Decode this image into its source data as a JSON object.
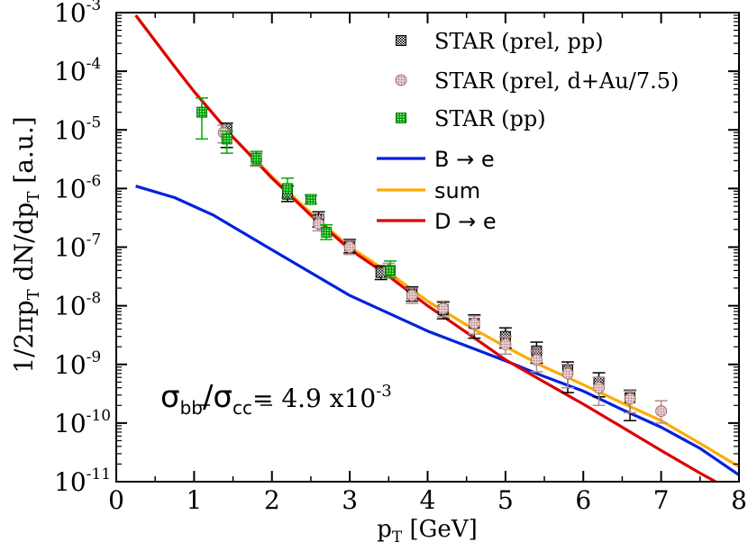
{
  "chart_data": {
    "type": "line",
    "xlabel": {
      "main": "p",
      "sub": "T",
      "rest": " [GeV]"
    },
    "ylabel": {
      "p1": "1/2πp",
      "s1": "T",
      "p2": " dN/dp",
      "s2": "T",
      "p3": "   [a.u.]"
    },
    "xlim": [
      0,
      8
    ],
    "ylim_log10": [
      -11,
      -3
    ],
    "y_scale": "log",
    "x_ticks": [
      "0",
      "1",
      "2",
      "3",
      "4",
      "5",
      "6",
      "7",
      "8"
    ],
    "y_ticks": [
      {
        "base": "10",
        "exp": "-3"
      },
      {
        "base": "10",
        "exp": "-4"
      },
      {
        "base": "10",
        "exp": "-5"
      },
      {
        "base": "10",
        "exp": "-6"
      },
      {
        "base": "10",
        "exp": "-7"
      },
      {
        "base": "10",
        "exp": "-8"
      },
      {
        "base": "10",
        "exp": "-9"
      },
      {
        "base": "10",
        "exp": "-10"
      },
      {
        "base": "10",
        "exp": "-11"
      }
    ],
    "grid": false,
    "legend_position": "top-right",
    "annotation": {
      "sigma1": "σ",
      "sub1": "bb",
      "slash": "/",
      "sigma2": "σ",
      "sub2": "cc",
      "eq": "= 4.9 x10",
      "exp": "-3"
    },
    "lines": [
      {
        "name": "B → e",
        "color": "#0022dd",
        "x": [
          0.25,
          0.75,
          1.25,
          2,
          3,
          4,
          5,
          5.5,
          6,
          6.5,
          7,
          7.5,
          8
        ],
        "y": [
          1.1e-06,
          7e-07,
          3.5e-07,
          9e-08,
          1.5e-08,
          3.7e-09,
          1.15e-09,
          6.2e-10,
          3.5e-10,
          1.7e-10,
          8.5e-11,
          3.7e-11,
          1.3e-11
        ]
      },
      {
        "name": "sum",
        "color": "#ffaa00",
        "x": [
          0.25,
          0.75,
          1,
          1.5,
          2,
          2.5,
          3,
          3.5,
          4,
          4.5,
          5,
          5.5,
          6,
          6.5,
          7,
          7.5,
          8
        ],
        "y": [
          0.0009,
          0.00012,
          4.5e-05,
          7.5e-06,
          1.6e-06,
          3.8e-07,
          1e-07,
          3.7e-08,
          1.2e-08,
          4.7e-09,
          2e-09,
          9e-10,
          4.5e-10,
          2.2e-10,
          1.1e-10,
          4.5e-11,
          1.8e-11
        ]
      },
      {
        "name": "D → e",
        "color": "#dd0000",
        "x": [
          0.25,
          0.75,
          1,
          1.5,
          2,
          2.5,
          3,
          3.5,
          4,
          4.5,
          5,
          5.5,
          6,
          6.5,
          7,
          7.5,
          7.7
        ],
        "y": [
          0.0009,
          0.00012,
          4.5e-05,
          7.5e-06,
          1.5e-06,
          3.5e-07,
          9.2e-08,
          3.2e-08,
          1e-08,
          3.5e-09,
          1.2e-09,
          5e-10,
          2.1e-10,
          8.5e-11,
          3.4e-11,
          1.4e-11,
          1e-11
        ]
      }
    ],
    "series": [
      {
        "name": "STAR (prel, pp)",
        "marker": "checker-square",
        "color": "#000000",
        "points": [
          {
            "x": 1.42,
            "y": 1e-05,
            "lo": 5e-06,
            "hi": 1.3e-05
          },
          {
            "x": 2.2,
            "y": 8e-07,
            "lo": 6e-07,
            "hi": 1.1e-06
          },
          {
            "x": 2.6,
            "y": 3e-07,
            "lo": 2.2e-07,
            "hi": 4e-07
          },
          {
            "x": 3.0,
            "y": 1.05e-07,
            "lo": 8e-08,
            "hi": 1.35e-07
          },
          {
            "x": 3.4,
            "y": 3.7e-08,
            "lo": 2.8e-08,
            "hi": 4.8e-08
          },
          {
            "x": 3.8,
            "y": 1.6e-08,
            "lo": 1.2e-08,
            "hi": 2.1e-08
          },
          {
            "x": 4.2,
            "y": 8.5e-09,
            "lo": 6e-09,
            "hi": 1.15e-08
          },
          {
            "x": 4.6,
            "y": 5e-09,
            "lo": 2.8e-09,
            "hi": 7e-09
          },
          {
            "x": 5.0,
            "y": 3e-09,
            "lo": 1.9e-09,
            "hi": 4.2e-09
          },
          {
            "x": 5.4,
            "y": 1.7e-09,
            "lo": 1.05e-09,
            "hi": 2.4e-09
          },
          {
            "x": 5.8,
            "y": 8e-10,
            "lo": 3.3e-10,
            "hi": 1.1e-09
          },
          {
            "x": 6.2,
            "y": 5e-10,
            "lo": 2.8e-10,
            "hi": 7.2e-10
          },
          {
            "x": 6.6,
            "y": 2.7e-10,
            "lo": 1.1e-10,
            "hi": 3.6e-10
          }
        ]
      },
      {
        "name": "STAR (prel, d+Au/7.5)",
        "marker": "circle",
        "color": "#c8a0a0",
        "points": [
          {
            "x": 1.38,
            "y": 9e-06,
            "lo": 6e-06,
            "hi": 1.2e-05
          },
          {
            "x": 1.8,
            "y": 3.1e-06,
            "lo": 2.4e-06,
            "hi": 4e-06
          },
          {
            "x": 2.6,
            "y": 2.5e-07,
            "lo": 1.9e-07,
            "hi": 3.3e-07
          },
          {
            "x": 3.0,
            "y": 1e-07,
            "lo": 7.5e-08,
            "hi": 1.3e-07
          },
          {
            "x": 3.5,
            "y": 4e-08,
            "lo": 3e-08,
            "hi": 5.3e-08
          },
          {
            "x": 3.8,
            "y": 1.5e-08,
            "lo": 1.1e-08,
            "hi": 2e-08
          },
          {
            "x": 4.2,
            "y": 9e-09,
            "lo": 6.5e-09,
            "hi": 1.2e-08
          },
          {
            "x": 4.6,
            "y": 5e-09,
            "lo": 3.3e-09,
            "hi": 6.7e-09
          },
          {
            "x": 5.0,
            "y": 2.2e-09,
            "lo": 1.5e-09,
            "hi": 3e-09
          },
          {
            "x": 5.4,
            "y": 1.2e-09,
            "lo": 7.5e-10,
            "hi": 1.7e-09
          },
          {
            "x": 5.8,
            "y": 7e-10,
            "lo": 4e-10,
            "hi": 1e-09
          },
          {
            "x": 6.2,
            "y": 4e-10,
            "lo": 2e-10,
            "hi": 6e-10
          },
          {
            "x": 6.6,
            "y": 2.6e-10,
            "lo": 1.5e-10,
            "hi": 3.7e-10
          },
          {
            "x": 7.0,
            "y": 1.6e-10,
            "lo": 1e-10,
            "hi": 2.4e-10
          }
        ]
      },
      {
        "name": "STAR (pp)",
        "marker": "green-square",
        "color": "#00aa00",
        "points": [
          {
            "x": 1.1,
            "y": 2e-05,
            "lo": 7e-06,
            "hi": 3.5e-05
          },
          {
            "x": 1.42,
            "y": 7e-06,
            "lo": 4e-06,
            "hi": 9.5e-06
          },
          {
            "x": 1.8,
            "y": 3.3e-06,
            "lo": 2.5e-06,
            "hi": 4.3e-06
          },
          {
            "x": 2.2,
            "y": 1e-06,
            "lo": 7e-07,
            "hi": 1.5e-06
          },
          {
            "x": 2.5,
            "y": 6.5e-07,
            "lo": 5.5e-07,
            "hi": 7.7e-07
          },
          {
            "x": 2.7,
            "y": 1.8e-07,
            "lo": 1.35e-07,
            "hi": 2.4e-07
          },
          {
            "x": 3.52,
            "y": 4e-08,
            "lo": 3e-08,
            "hi": 5.8e-08
          }
        ]
      }
    ]
  }
}
